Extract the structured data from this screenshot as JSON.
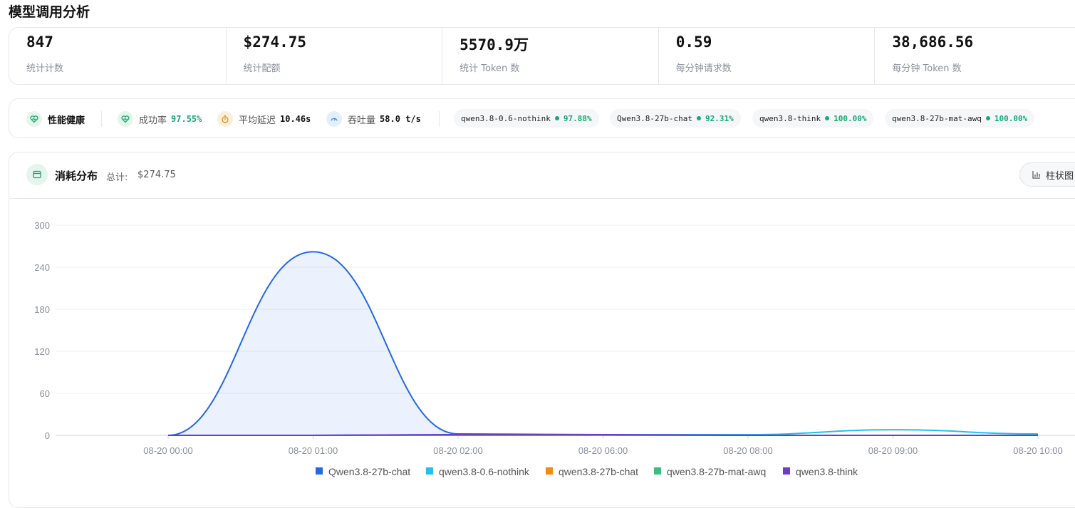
{
  "page": {
    "title": "模型调用分析"
  },
  "stats": [
    {
      "value": "847",
      "label": "统计计数"
    },
    {
      "value": "$274.75",
      "label": "统计配额"
    },
    {
      "value": "5570.9万",
      "label": "统计 Token 数"
    },
    {
      "value": "0.59",
      "label": "每分钟请求数"
    },
    {
      "value": "38,686.56",
      "label": "每分钟 Token 数"
    }
  ],
  "health": {
    "title": "性能健康",
    "success_label": "成功率",
    "success_value": "97.55%",
    "latency_label": "平均延迟",
    "latency_value": "10.46s",
    "throughput_label": "吞吐量",
    "throughput_value": "58.0 t/s",
    "models": [
      {
        "name": "qwen3.8-0.6-nothink",
        "rate": "97.88%"
      },
      {
        "name": "Qwen3.8-27b-chat",
        "rate": "92.31%"
      },
      {
        "name": "qwen3.8-think",
        "rate": "100.00%"
      },
      {
        "name": "qwen3.8-27b-mat-awq",
        "rate": "100.00%"
      }
    ]
  },
  "consumption": {
    "title": "消耗分布",
    "total_label": "总计:",
    "total_value": "$274.75",
    "chart_type_button": "柱状图"
  },
  "colors": {
    "accent_green": "#19a974",
    "series": [
      "#2468e6",
      "#22c0ee",
      "#f58a0b",
      "#3dbd7d",
      "#6a3fc8"
    ]
  },
  "chart_data": {
    "type": "area",
    "x": [
      "08-20 00:00",
      "08-20 01:00",
      "08-20 02:00",
      "08-20 06:00",
      "08-20 08:00",
      "08-20 09:00",
      "08-20 10:00"
    ],
    "ylim": [
      0,
      300
    ],
    "yticks": [
      0,
      60,
      120,
      180,
      240,
      300
    ],
    "grid": true,
    "legend_position": "bottom",
    "series": [
      {
        "name": "Qwen3.8-27b-chat",
        "values": [
          0,
          262,
          2,
          1,
          0,
          0,
          0
        ],
        "filled": true
      },
      {
        "name": "qwen3.8-0.6-nothink",
        "values": [
          0,
          0,
          1,
          1,
          1,
          8,
          2
        ],
        "filled": false
      },
      {
        "name": "qwen3.8-27b-chat",
        "values": [
          0,
          0,
          0,
          0,
          0,
          0,
          0
        ],
        "filled": false
      },
      {
        "name": "qwen3.8-27b-mat-awq",
        "values": [
          0,
          0,
          0,
          0,
          0,
          0,
          0
        ],
        "filled": false
      },
      {
        "name": "qwen3.8-think",
        "values": [
          0,
          0,
          1,
          1,
          0,
          0,
          0
        ],
        "filled": false
      }
    ]
  }
}
